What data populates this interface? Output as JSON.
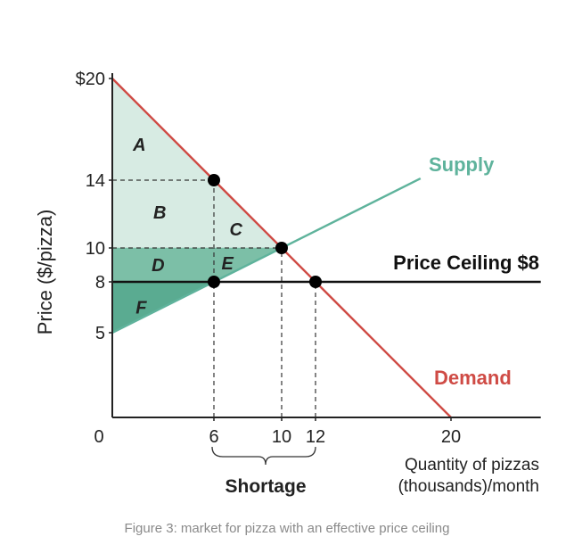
{
  "chart_data": {
    "type": "line",
    "ylabel": "Price ($/pizza)",
    "xlabel_line1": "Quantity of pizzas",
    "xlabel_line2": "(thousands)/month",
    "origin_label": "0",
    "x_ticks": [
      {
        "value": 6,
        "label": "6"
      },
      {
        "value": 10,
        "label": "10"
      },
      {
        "value": 12,
        "label": "12"
      },
      {
        "value": 20,
        "label": "20"
      }
    ],
    "y_ticks": [
      {
        "value": 5,
        "label": "5"
      },
      {
        "value": 8,
        "label": "8"
      },
      {
        "value": 10,
        "label": "10"
      },
      {
        "value": 14,
        "label": "14"
      },
      {
        "value": 20,
        "label": "$20"
      }
    ],
    "series": [
      {
        "name": "Demand",
        "color": "#cf4b45",
        "points": [
          [
            0,
            20
          ],
          [
            20,
            0
          ]
        ]
      },
      {
        "name": "Supply",
        "color": "#5fb39c",
        "points": [
          [
            0,
            5
          ],
          [
            18.2,
            14.1
          ]
        ]
      },
      {
        "name": "Price Ceiling $8",
        "color": "#111111",
        "points": [
          [
            0,
            8
          ],
          [
            25.3,
            8
          ]
        ]
      }
    ],
    "markers": [
      [
        6,
        14
      ],
      [
        10,
        10
      ],
      [
        6,
        8
      ],
      [
        12,
        8
      ]
    ],
    "guides": {
      "horizontal": [
        [
          0,
          6,
          14
        ],
        [
          0,
          10,
          10
        ]
      ],
      "vertical": [
        [
          6,
          0,
          14
        ],
        [
          10,
          0,
          10
        ],
        [
          12,
          0,
          8
        ]
      ]
    },
    "regions": [
      {
        "label": "A",
        "color": "#d7ebe3",
        "at": [
          1.6,
          16.1
        ],
        "polygon": [
          [
            0,
            20
          ],
          [
            6,
            14
          ],
          [
            0,
            14
          ]
        ]
      },
      {
        "label": "B",
        "color": "#d7ebe3",
        "at": [
          2.8,
          12.1
        ],
        "polygon": [
          [
            0,
            14
          ],
          [
            6,
            14
          ],
          [
            6,
            10
          ],
          [
            0,
            10
          ]
        ]
      },
      {
        "label": "C",
        "color": "#d7ebe3",
        "at": [
          7.3,
          11.1
        ],
        "polygon": [
          [
            6,
            14
          ],
          [
            10,
            10
          ],
          [
            6,
            10
          ]
        ]
      },
      {
        "label": "D",
        "color": "#7cbfa7",
        "at": [
          2.7,
          9.0
        ],
        "polygon": [
          [
            0,
            10
          ],
          [
            6,
            10
          ],
          [
            6,
            8
          ],
          [
            0,
            8
          ]
        ]
      },
      {
        "label": "E",
        "color": "#7cbfa7",
        "at": [
          6.8,
          9.1
        ],
        "polygon": [
          [
            6,
            10
          ],
          [
            10,
            10
          ],
          [
            6,
            8
          ]
        ]
      },
      {
        "label": "F",
        "color": "#5aab91",
        "at": [
          1.7,
          6.5
        ],
        "polygon": [
          [
            0,
            8
          ],
          [
            6,
            8
          ],
          [
            0,
            5
          ]
        ]
      }
    ],
    "curve_labels": {
      "supply": "Supply",
      "demand": "Demand",
      "ceiling": "Price Ceiling $8"
    },
    "shortage": {
      "label": "Shortage",
      "from": 6,
      "to": 12
    },
    "xlim": [
      0,
      25.3
    ],
    "ylim": [
      0,
      20
    ]
  },
  "caption": "Figure 3: market for pizza with an effective price ceiling"
}
